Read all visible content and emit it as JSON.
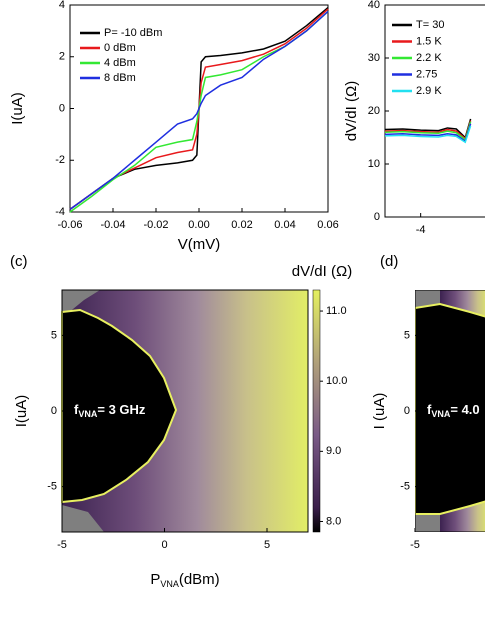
{
  "chart_data": [
    {
      "type": "line",
      "x_label": "V(mV)",
      "y_label": "I(uA)",
      "x": [
        -0.06,
        -0.05,
        -0.04,
        -0.03,
        -0.02,
        -0.01,
        -0.003,
        -0.001,
        0.001,
        0.003,
        0.01,
        0.02,
        0.03,
        0.04,
        0.05,
        0.06
      ],
      "series": [
        {
          "name": "P= -10 dBm",
          "color": "#000000",
          "values": [
            -3.9,
            -3.3,
            -2.7,
            -2.35,
            -2.2,
            -2.1,
            -2.0,
            -1.8,
            1.8,
            2.0,
            2.05,
            2.15,
            2.3,
            2.6,
            3.2,
            3.9
          ]
        },
        {
          "name": "0 dBm",
          "color": "#e8191c",
          "values": [
            -3.9,
            -3.3,
            -2.7,
            -2.3,
            -1.9,
            -1.7,
            -1.6,
            -1.0,
            1.0,
            1.6,
            1.7,
            1.85,
            2.1,
            2.5,
            3.1,
            3.85
          ]
        },
        {
          "name": "4 dBm",
          "color": "#33e833",
          "values": [
            -4.0,
            -3.4,
            -2.75,
            -2.2,
            -1.5,
            -1.3,
            -1.2,
            -0.5,
            0.5,
            1.2,
            1.3,
            1.5,
            2.0,
            2.4,
            3.0,
            3.75
          ]
        },
        {
          "name": "8 dBm",
          "color": "#1f2fe0",
          "values": [
            -3.9,
            -3.3,
            -2.7,
            -2.0,
            -1.3,
            -0.6,
            -0.4,
            -0.2,
            0.2,
            0.5,
            0.9,
            1.2,
            1.9,
            2.4,
            3.0,
            3.75
          ]
        }
      ],
      "xlim": [
        -0.06,
        0.06
      ],
      "xticks": [
        -0.06,
        -0.04,
        -0.02,
        {
          "value": 0,
          "label": "0.00"
        },
        0.02,
        0.04,
        0.06
      ],
      "ylim": [
        -4,
        4
      ],
      "yticks": [
        -4,
        -2,
        0,
        2,
        4
      ]
    },
    {
      "type": "line",
      "y_label": "dV/dI (Ω)",
      "x": [
        -6,
        -5,
        -4,
        -3,
        -2.5,
        -2,
        -1.5,
        -1.2
      ],
      "series": [
        {
          "name": "T= 30",
          "color": "#000000",
          "values": [
            16.5,
            16.6,
            16.4,
            16.3,
            16.8,
            16.6,
            15.0,
            18.5
          ]
        },
        {
          "name": "1.5 K",
          "color": "#e8191c",
          "values": [
            16.2,
            16.3,
            16.1,
            16.0,
            16.5,
            16.2,
            14.8,
            18.2
          ]
        },
        {
          "name": "2.2 K",
          "color": "#33e833",
          "values": [
            16.0,
            16.1,
            15.9,
            15.8,
            16.2,
            15.9,
            14.6,
            18.0
          ]
        },
        {
          "name": "2.75",
          "color": "#1f2fe0",
          "values": [
            15.6,
            15.7,
            15.5,
            15.4,
            15.7,
            15.5,
            14.3,
            17.6
          ]
        },
        {
          "name": "2.9 K",
          "color": "#22e0f0",
          "values": [
            15.3,
            15.4,
            15.2,
            15.1,
            15.4,
            15.2,
            14.1,
            17.2
          ]
        }
      ],
      "xlim": [
        -6,
        6
      ],
      "xticks": [
        -4
      ],
      "ylim": [
        0,
        40
      ],
      "yticks": [
        0,
        10,
        20,
        30,
        40
      ]
    },
    {
      "type": "heatmap",
      "panel_label": "(c)",
      "colorbar_label": "dV/dI (Ω)",
      "annotation": {
        "main": "f",
        "sub": "VNA",
        "tail": "= 3 GHz"
      },
      "x_label": {
        "main": "P",
        "sub": "VNA",
        "tail": "(dBm)"
      },
      "y_label": "I(uA)",
      "xlim": [
        -5,
        7
      ],
      "xticks": [
        -5,
        0,
        5
      ],
      "ylim": [
        -8,
        8
      ],
      "yticks": [
        -5,
        0,
        5
      ],
      "clim": [
        7.85,
        11.3
      ],
      "cticks": [
        {
          "value": 8,
          "label": "8.0"
        },
        {
          "value": 9,
          "label": "9.0"
        },
        {
          "value": 10,
          "label": "10.0"
        },
        {
          "value": 11,
          "label": "11.0"
        }
      ]
    },
    {
      "type": "heatmap",
      "panel_label": "(d)",
      "annotation": {
        "main": "f",
        "sub": "VNA",
        "tail": "= 4.0"
      },
      "y_label": "I (uA)",
      "xlim": [
        -5,
        7
      ],
      "xticks": [
        -5
      ],
      "ylim": [
        -8,
        8
      ],
      "yticks": [
        -5,
        0,
        5
      ]
    }
  ]
}
